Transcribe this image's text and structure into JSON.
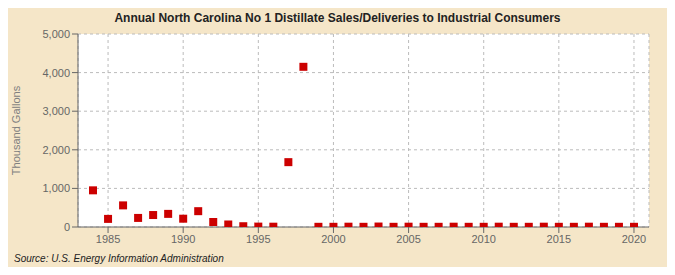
{
  "chart_data": {
    "type": "scatter",
    "title": "Annual North Carolina No 1 Distillate Sales/Deliveries to Industrial Consumers",
    "ylabel": "Thousand Gallons",
    "annotations": [
      "Source: U.S. Energy Information Administration"
    ],
    "x": [
      1984,
      1985,
      1986,
      1987,
      1988,
      1989,
      1990,
      1991,
      1992,
      1993,
      1994,
      1995,
      1996,
      1997,
      1998,
      1999,
      2000,
      2001,
      2002,
      2003,
      2004,
      2005,
      2006,
      2007,
      2008,
      2009,
      2010,
      2011,
      2012,
      2013,
      2014,
      2015,
      2016,
      2017,
      2018,
      2019,
      2020
    ],
    "values": [
      950,
      210,
      560,
      235,
      310,
      340,
      215,
      410,
      130,
      65,
      20,
      10,
      8,
      1680,
      4150,
      5,
      5,
      8,
      5,
      12,
      5,
      8,
      5,
      5,
      8,
      5,
      5,
      8,
      5,
      5,
      8,
      5,
      5,
      8,
      5,
      5,
      5
    ],
    "color": "#cc0000",
    "marker": "square",
    "xlim": [
      1983,
      2021
    ],
    "xticks": [
      1985,
      1990,
      1995,
      2000,
      2005,
      2010,
      2015,
      2020
    ],
    "ylim": [
      0,
      5000
    ],
    "yticks": [
      0,
      {
        "value": 1000,
        "label": "1,000"
      },
      {
        "value": 2000,
        "label": "2,000"
      },
      {
        "value": 3000,
        "label": "3,000"
      },
      {
        "value": 4000,
        "label": "4,000"
      },
      {
        "value": 5000,
        "label": "5,000"
      }
    ],
    "grid": true
  }
}
